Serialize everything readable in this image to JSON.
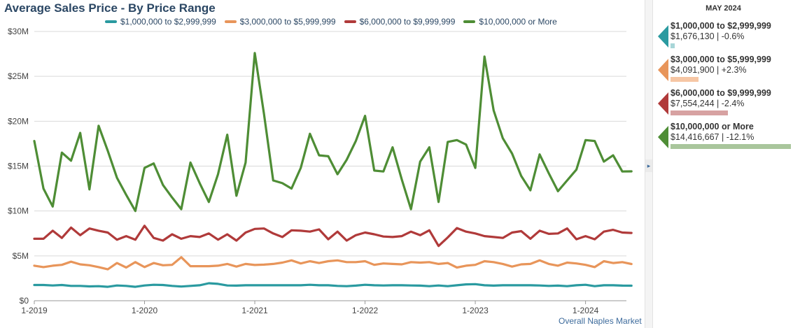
{
  "chart_data": {
    "type": "line",
    "title": "Average Sales Price - By Price Range",
    "xlabel": "",
    "ylabel": "",
    "ylim": [
      0,
      30000000
    ],
    "y_ticks": [
      0,
      5000000,
      10000000,
      15000000,
      20000000,
      25000000,
      30000000
    ],
    "y_tick_labels": [
      "$0",
      "$5M",
      "$10M",
      "$15M",
      "$20M",
      "$25M",
      "$30M"
    ],
    "x_start": "2019-01",
    "x_end": "2024-05",
    "x_tick_labels": [
      "1-2019",
      "1-2020",
      "1-2021",
      "1-2022",
      "1-2023",
      "1-2024"
    ],
    "grid": true,
    "legend_position": "top",
    "series": [
      {
        "name": "$1,000,000 to $2,999,999",
        "color": "#2a9aa0",
        "values": [
          1.75,
          1.75,
          1.7,
          1.75,
          1.65,
          1.65,
          1.6,
          1.62,
          1.55,
          1.7,
          1.65,
          1.55,
          1.7,
          1.78,
          1.75,
          1.65,
          1.58,
          1.65,
          1.72,
          1.95,
          1.88,
          1.7,
          1.68,
          1.72,
          1.72,
          1.72,
          1.72,
          1.72,
          1.72,
          1.72,
          1.78,
          1.72,
          1.72,
          1.65,
          1.62,
          1.68,
          1.78,
          1.72,
          1.7,
          1.72,
          1.72,
          1.7,
          1.68,
          1.62,
          1.7,
          1.62,
          1.72,
          1.82,
          1.85,
          1.72,
          1.68,
          1.72,
          1.72,
          1.72,
          1.72,
          1.7,
          1.65,
          1.68,
          1.62,
          1.72,
          1.78,
          1.62,
          1.72,
          1.72,
          1.68,
          1.676
        ]
      },
      {
        "name": "$3,000,000 to $5,999,999",
        "color": "#e8955a",
        "values": [
          3.9,
          3.75,
          3.9,
          4.0,
          4.35,
          4.05,
          3.95,
          3.75,
          3.5,
          4.2,
          3.7,
          4.3,
          3.75,
          4.2,
          3.95,
          4.0,
          4.85,
          3.85,
          3.85,
          3.85,
          3.9,
          4.1,
          3.8,
          4.1,
          3.98,
          4.02,
          4.1,
          4.25,
          4.5,
          4.15,
          4.4,
          4.2,
          4.4,
          4.5,
          4.3,
          4.3,
          4.4,
          4.0,
          4.15,
          4.1,
          4.05,
          4.3,
          4.25,
          4.3,
          4.1,
          4.2,
          3.7,
          3.9,
          4.0,
          4.4,
          4.3,
          4.1,
          3.8,
          4.05,
          4.1,
          4.5,
          4.1,
          3.9,
          4.25,
          4.15,
          4.0,
          3.75,
          4.4,
          4.2,
          4.3,
          4.092
        ]
      },
      {
        "name": "$6,000,000 to $9,999,999",
        "color": "#b03a3a",
        "values": [
          6.9,
          6.9,
          7.8,
          7.0,
          8.15,
          7.3,
          8.05,
          7.8,
          7.6,
          6.8,
          7.2,
          6.8,
          8.35,
          7.0,
          6.7,
          7.4,
          6.9,
          7.2,
          7.1,
          7.5,
          6.8,
          7.4,
          6.7,
          7.6,
          8.0,
          8.05,
          7.5,
          7.1,
          7.85,
          7.8,
          7.7,
          7.95,
          6.85,
          7.7,
          6.7,
          7.3,
          7.6,
          7.4,
          7.15,
          7.1,
          7.2,
          7.7,
          7.3,
          7.85,
          6.1,
          7.05,
          8.1,
          7.7,
          7.5,
          7.2,
          7.1,
          7.0,
          7.6,
          7.75,
          6.9,
          7.8,
          7.45,
          7.5,
          8.05,
          6.85,
          7.2,
          6.85,
          7.7,
          7.9,
          7.6,
          7.554
        ]
      },
      {
        "name": "$10,000,000 or More",
        "color": "#4e8d35",
        "values": [
          17.8,
          12.5,
          10.5,
          16.5,
          15.6,
          18.7,
          12.4,
          19.5,
          16.7,
          13.7,
          11.8,
          10.0,
          14.8,
          15.3,
          12.9,
          11.5,
          10.2,
          15.4,
          13.1,
          11.0,
          14.1,
          18.5,
          11.7,
          15.4,
          27.6,
          20.8,
          13.4,
          13.1,
          12.5,
          14.8,
          18.6,
          16.2,
          16.1,
          14.1,
          15.7,
          17.8,
          20.6,
          14.5,
          14.4,
          17.1,
          13.5,
          10.2,
          15.5,
          17.1,
          11.0,
          17.7,
          17.9,
          17.4,
          14.8,
          27.2,
          21.2,
          18.1,
          16.4,
          13.9,
          12.3,
          16.3,
          14.2,
          12.2,
          13.4,
          14.6,
          17.9,
          17.8,
          15.5,
          16.2,
          14.4,
          14.417
        ]
      }
    ]
  },
  "source_label": "Overall Naples Market",
  "side_panel": {
    "month": "MAY 2024",
    "items": [
      {
        "name": "$1,000,000 to $2,999,999",
        "value": "$1,676,130 | -0.6%",
        "color": "#2a9aa0",
        "bar_color": "#a8d6d8",
        "bar_fraction": 0.034
      },
      {
        "name": "$3,000,000 to $5,999,999",
        "value": "$4,091,900 | +2.3%",
        "color": "#e8955a",
        "bar_color": "#f6c6a4",
        "bar_fraction": 0.23
      },
      {
        "name": "$6,000,000 to $9,999,999",
        "value": "$7,554,244 | -2.4%",
        "color": "#b03a3a",
        "bar_color": "#d7a2a2",
        "bar_fraction": 0.475
      },
      {
        "name": "$10,000,000 or More",
        "value": "$14,416,667 | -12.1%",
        "color": "#4e8d35",
        "bar_color": "#a9c69c",
        "bar_fraction": 1.0
      }
    ]
  }
}
